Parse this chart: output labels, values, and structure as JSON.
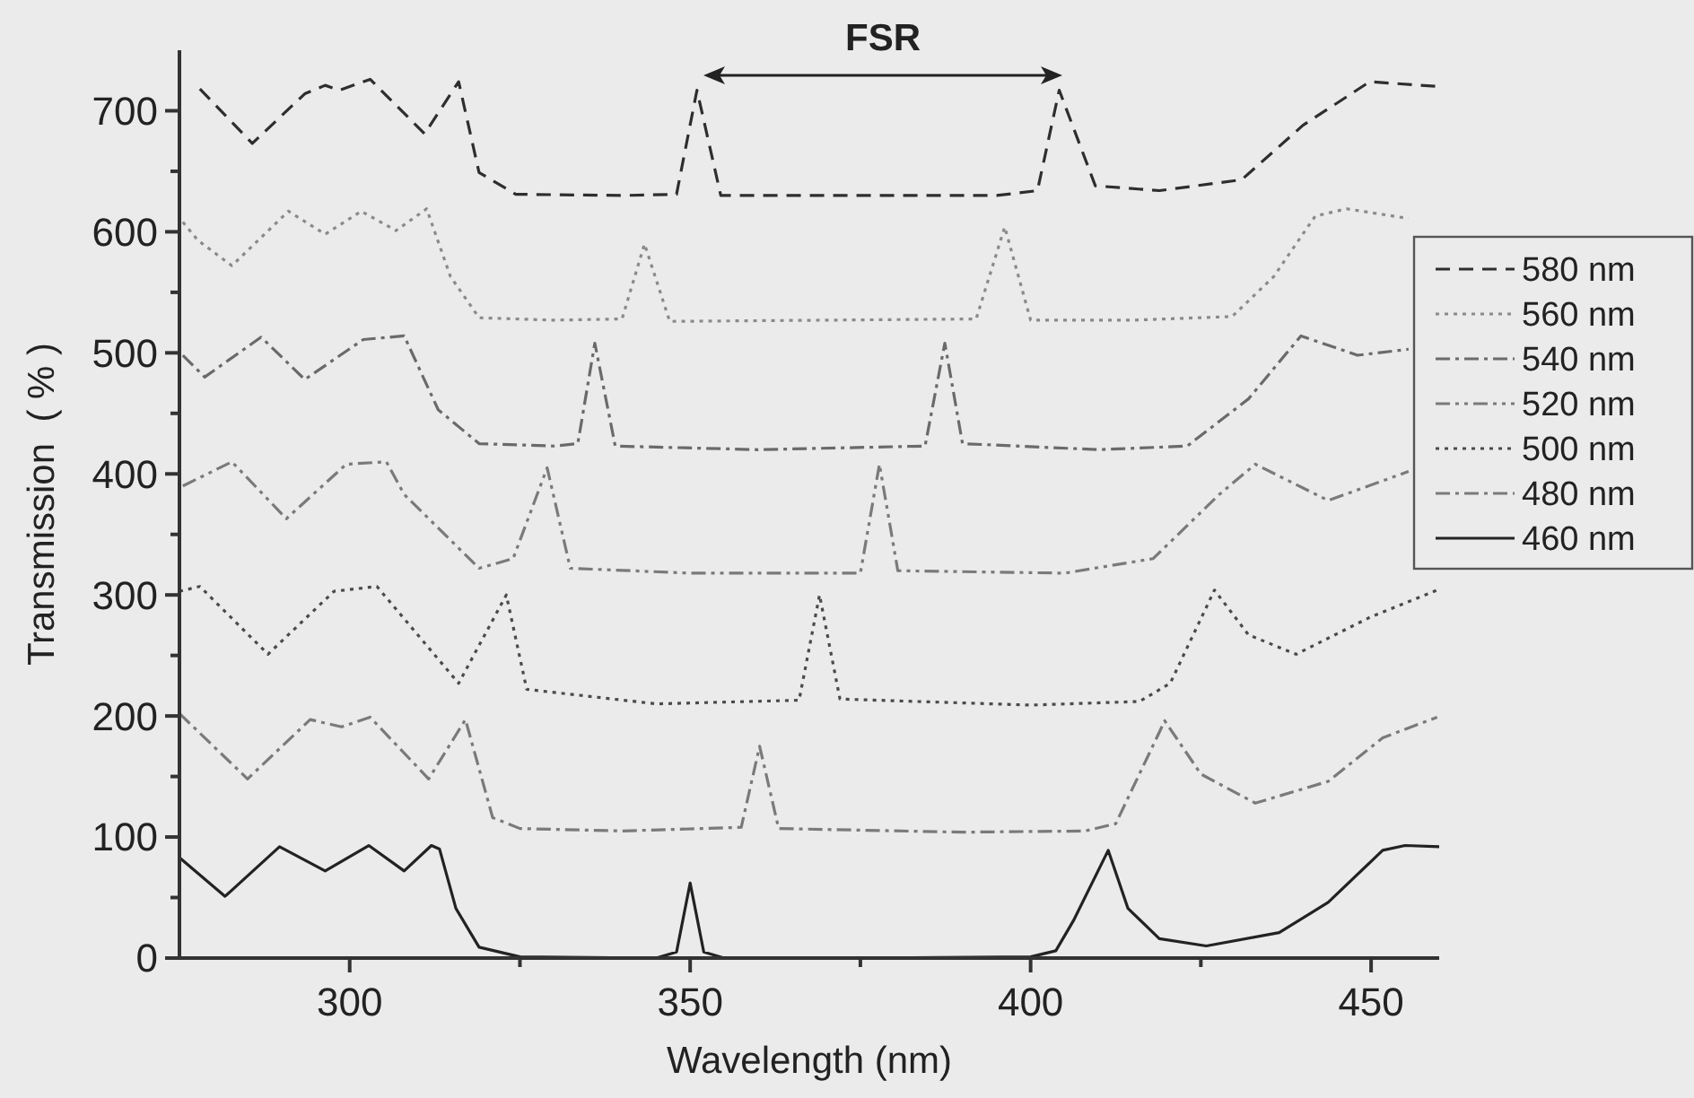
{
  "chart_data": {
    "type": "line",
    "xlabel": "Wavelength (nm)",
    "ylabel": "Transmission  ( % )",
    "xlim": [
      275,
      460
    ],
    "xticks": [
      {
        "value": 300,
        "label": "300"
      },
      {
        "value": 325,
        "label": null
      },
      {
        "value": 350,
        "label": "350"
      },
      {
        "value": 375,
        "label": null
      },
      {
        "value": 400,
        "label": "400"
      },
      {
        "value": 425,
        "label": null
      },
      {
        "value": 450,
        "label": "450"
      }
    ],
    "ylim": [
      0,
      750
    ],
    "yticks": [
      0,
      {
        "value": 50,
        "label": null
      },
      100,
      {
        "value": 150,
        "label": null
      },
      200,
      {
        "value": 250,
        "label": null
      },
      300,
      {
        "value": 350,
        "label": null
      },
      400,
      {
        "value": 450,
        "label": null
      },
      500,
      {
        "value": 550,
        "label": null
      },
      600,
      {
        "value": 650,
        "label": null
      },
      700
    ],
    "grid": false,
    "legend": "right",
    "marker": "none",
    "annotations": [
      "FSR"
    ],
    "series": [
      {
        "name": "580 nm",
        "color": "#2e2e2e",
        "line_style": "dashed",
        "x": [
          278,
          285.7,
          293.4,
          296.4,
          298.5,
          303,
          311,
          316,
          319,
          324.4,
          340,
          348,
          351,
          354.5,
          370,
          395,
          401,
          404.2,
          409.5,
          418.9,
          431,
          440,
          449.8,
          460
        ],
        "values": [
          718,
          673,
          714,
          721,
          717,
          726,
          681,
          724,
          649,
          631,
          630,
          631,
          717,
          630,
          630,
          630,
          634,
          717,
          638,
          634,
          643,
          688,
          724,
          720
        ]
      },
      {
        "name": "560 nm",
        "color": "#8a8a8a",
        "line_style": "dotted",
        "x": [
          275.5,
          277.7,
          282.7,
          291,
          296.4,
          301.7,
          306.8,
          311.3,
          314.8,
          319,
          330,
          340,
          343.3,
          347,
          370,
          392,
          396.2,
          400,
          415,
          429.6,
          435.7,
          441.8,
          446.4,
          455.5
        ],
        "values": [
          608,
          593,
          572,
          617,
          598,
          617,
          601,
          619,
          563,
          529,
          527,
          528,
          590,
          526,
          527,
          528,
          604,
          527,
          527,
          530,
          563,
          613,
          619,
          611
        ]
      },
      {
        "name": "540 nm",
        "color": "#6a6a6a",
        "line_style": "dashdot",
        "x": [
          275.5,
          278.7,
          287,
          293.4,
          302,
          308,
          313,
          319,
          330,
          333.5,
          336,
          339,
          360,
          384.5,
          387.4,
          390,
          410,
          423,
          432,
          439.7,
          448,
          455.5
        ],
        "values": [
          498,
          480,
          513,
          478,
          511,
          514,
          453,
          425,
          423,
          425,
          508,
          423,
          420,
          423,
          508,
          425,
          420,
          423,
          462,
          514,
          498,
          503
        ]
      },
      {
        "name": "520 nm",
        "color": "#7a7a7a",
        "line_style": "dashdotdot",
        "x": [
          275.5,
          282.7,
          290.7,
          299.5,
          305.4,
          308,
          319,
          324,
          329,
          332.4,
          350,
          375,
          377.8,
          380.5,
          405,
          418,
          427.7,
          433,
          443.7,
          455.5
        ],
        "values": [
          390,
          410,
          363,
          408,
          410,
          383,
          322,
          330,
          405,
          322,
          318,
          318,
          408,
          320,
          318,
          330,
          383,
          408,
          378,
          402
        ]
      },
      {
        "name": "500 nm",
        "color": "#4a4a4a",
        "line_style": "dotted",
        "x": [
          275,
          278,
          288,
          297.7,
          304,
          316,
          323,
          326,
          345,
          366,
          369,
          372,
          400,
          416,
          420.5,
          427,
          432,
          439,
          450,
          459.7
        ],
        "values": [
          303,
          307,
          251,
          303,
          307,
          227,
          300,
          222,
          210,
          213,
          300,
          214,
          209,
          212,
          227,
          304,
          267,
          251,
          282,
          304
        ]
      },
      {
        "name": "480 nm",
        "color": "#7a7a7a",
        "line_style": "dashdot",
        "x": [
          275,
          285,
          294.2,
          298.8,
          303,
          311.6,
          317,
          321,
          325,
          340,
          357.5,
          360.2,
          363,
          390,
          408,
          412.5,
          419.7,
          425,
          433,
          443.7,
          451.7,
          459.7
        ],
        "values": [
          202,
          148,
          197,
          191,
          199,
          148,
          197,
          116,
          107,
          105,
          108,
          175,
          107,
          104,
          105,
          111,
          196,
          152,
          128,
          146,
          182,
          199
        ]
      },
      {
        "name": "460 nm",
        "color": "#222222",
        "line_style": "solid",
        "x": [
          275,
          281.7,
          289.7,
          296.4,
          302.8,
          308,
          312,
          313.2,
          315.6,
          319,
          325,
          345,
          348,
          350,
          352,
          355,
          375,
          400,
          403.7,
          406.3,
          411.4,
          414.3,
          418.9,
          425.8,
          436.5,
          443.7,
          451.7,
          455,
          460
        ],
        "values": [
          83,
          51,
          92,
          72,
          93,
          72,
          93,
          90,
          41,
          9,
          1,
          0,
          5,
          62,
          5,
          0,
          0,
          1,
          6,
          31,
          89,
          41,
          16,
          10,
          21,
          46,
          89,
          93,
          92
        ]
      }
    ]
  }
}
